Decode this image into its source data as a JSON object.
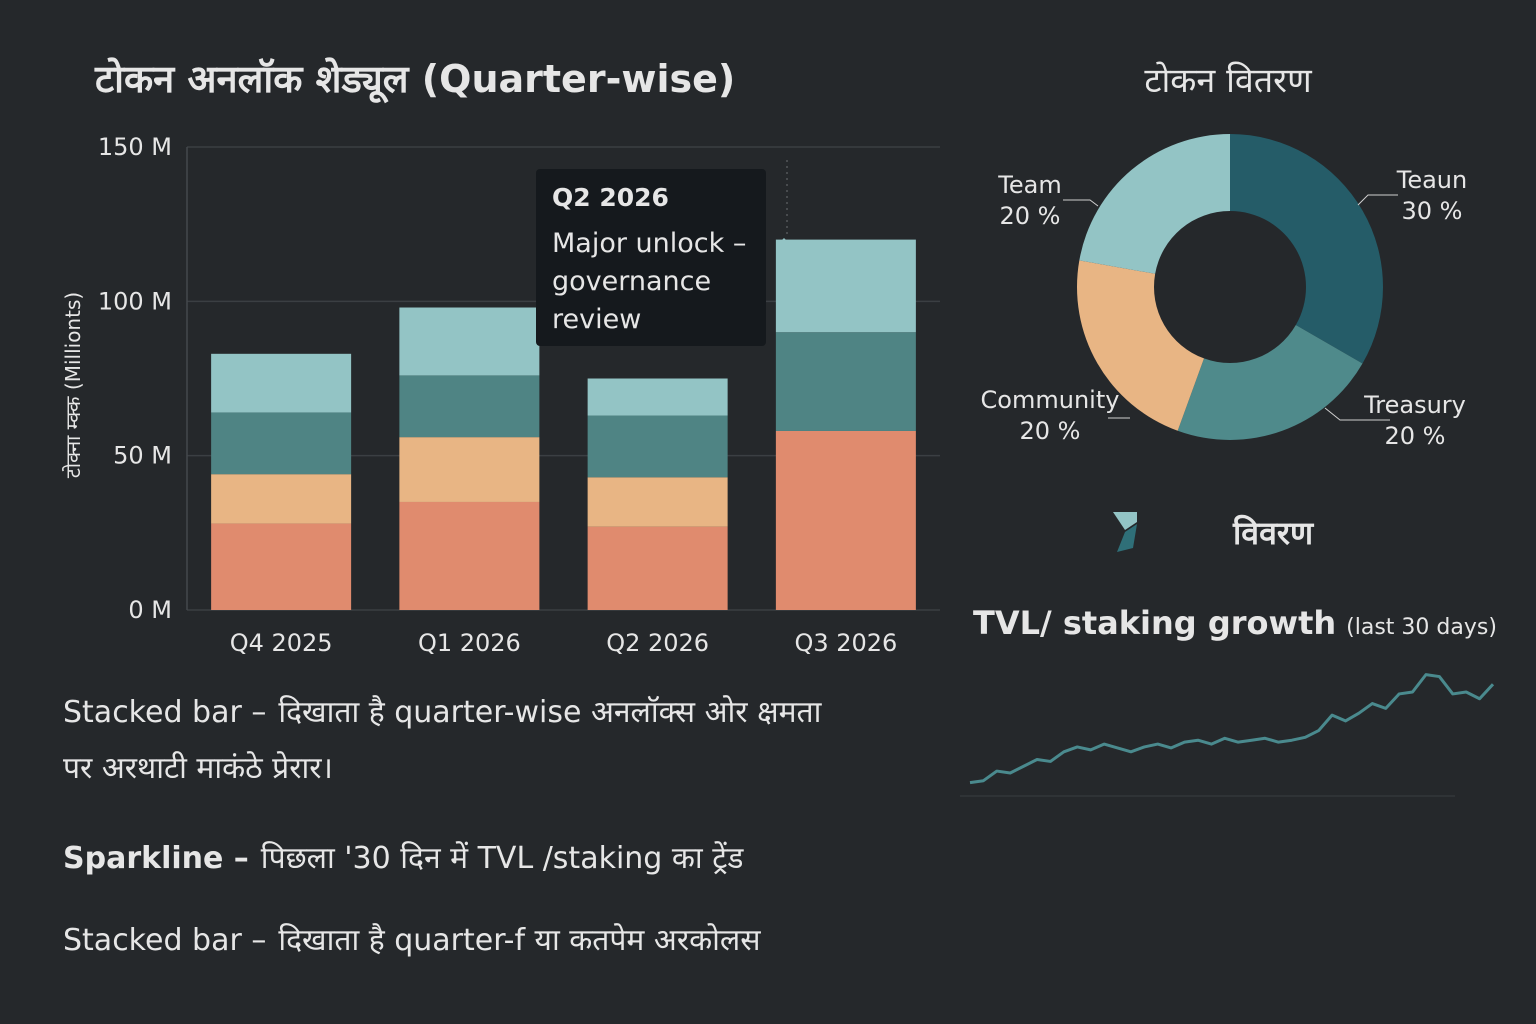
{
  "chart_data": [
    {
      "type": "bar",
      "title": "टोकन अनलॉक शेड्यूल (Quarter-wise)",
      "y_label": "टोक्ना म्क्क (Millionts)",
      "categories": [
        "Q4 2025",
        "Q1 2026",
        "Q2 2026",
        "Q3 2026"
      ],
      "series": [
        {
          "color": "#e08b6e",
          "values": [
            28,
            35,
            27,
            58
          ]
        },
        {
          "color": "#e8b584",
          "values": [
            16,
            21,
            16,
            0
          ]
        },
        {
          "color": "#4f8484",
          "values": [
            20,
            20,
            20,
            32
          ]
        },
        {
          "color": "#93c4c5",
          "values": [
            19,
            22,
            12,
            30
          ]
        }
      ],
      "stacked": true,
      "ylim": [
        0,
        150
      ],
      "yticks": [
        {
          "value": 0,
          "label": "0 M"
        },
        {
          "value": 50,
          "label": "50 M"
        },
        {
          "value": 100,
          "label": "100 M"
        },
        {
          "value": 150,
          "label": "150 M"
        }
      ],
      "grid": true,
      "annotation": {
        "title": "Q2 2026",
        "lines": [
          "Major unlock –",
          "governance",
          "review"
        ]
      }
    },
    {
      "type": "pie",
      "title": "टोकन वितरण",
      "donut": true,
      "categories": [
        "Teaun",
        "Treasury",
        "Community",
        "Team"
      ],
      "values": [
        30,
        20,
        20,
        20
      ],
      "value_labels": [
        "30 %",
        "20 %",
        "20 %",
        "20 %"
      ],
      "colors": [
        "#255c68",
        "#4f8a8b",
        "#e8b584",
        "#93c4c5"
      ]
    },
    {
      "type": "line",
      "heading": "विवरण",
      "title": "TVL/ staking growth",
      "subtitle": "(last 30 days)",
      "color": "#4a8a8e",
      "values": [
        18,
        20,
        30,
        28,
        35,
        42,
        40,
        50,
        55,
        52,
        58,
        54,
        50,
        55,
        58,
        54,
        60,
        62,
        58,
        64,
        60,
        62,
        64,
        60,
        62,
        65,
        72,
        88,
        82,
        90,
        100,
        95,
        110,
        112,
        130,
        128,
        110,
        112,
        105,
        120
      ],
      "ylim": [
        0,
        140
      ]
    }
  ],
  "notes": [
    {
      "label": "Stacked bar –",
      "lines": [
        "दिखाता है quarter-wise अनलॉक्स ओर क्षमता",
        "पर अरथाटी माकंठे प्रेरार।"
      ]
    },
    {
      "label": "Sparkline –",
      "lines": [
        "पिछला '30 दिन में TVL /staking का ट्रेंड"
      ]
    },
    {
      "label": "Stacked bar –",
      "lines": [
        "दिखाता है quarter-f या कतपेम अरकोलस"
      ]
    }
  ]
}
